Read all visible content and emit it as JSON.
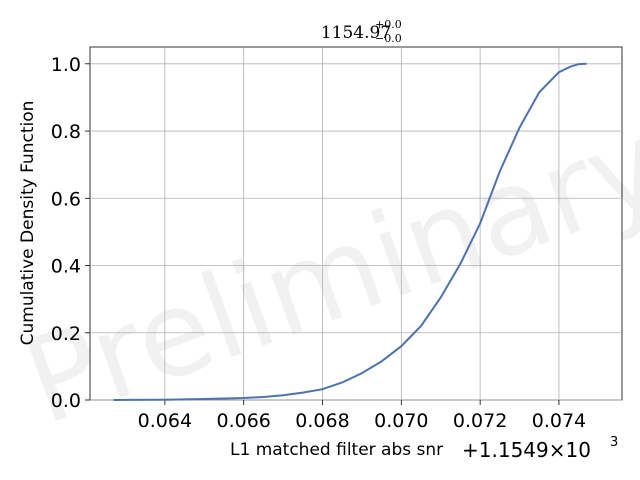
{
  "chart_data": {
    "type": "line",
    "title_main": "1154.97",
    "title_sup": "+0.0",
    "title_sub": "−0.0",
    "xlabel": "L1 matched filter abs snr",
    "ylabel": "Cumulative Density Function",
    "x_offset_text": "+1.1549×10",
    "x_offset_exp": "3",
    "watermark": "Preliminary",
    "xlim": [
      0.0621,
      0.0756
    ],
    "ylim": [
      0.0,
      1.05
    ],
    "x_ticks": [
      0.064,
      0.066,
      0.068,
      0.07,
      0.072,
      0.074
    ],
    "x_tick_labels": [
      "0.064",
      "0.066",
      "0.068",
      "0.070",
      "0.072",
      "0.074"
    ],
    "y_ticks": [
      0.0,
      0.2,
      0.4,
      0.6,
      0.8,
      1.0
    ],
    "y_tick_labels": [
      "0.0",
      "0.2",
      "0.4",
      "0.6",
      "0.8",
      "1.0"
    ],
    "grid": true,
    "line_color": "#4c72b0",
    "series": [
      {
        "x": [
          0.0627,
          0.064,
          0.065,
          0.066,
          0.0665,
          0.067,
          0.0675,
          0.068,
          0.0685,
          0.069,
          0.0695,
          0.07,
          0.0705,
          0.071,
          0.0715,
          0.072,
          0.0725,
          0.073,
          0.0735,
          0.074,
          0.0743,
          0.0745,
          0.0747
        ],
        "y": [
          0.0,
          0.001,
          0.003,
          0.006,
          0.009,
          0.014,
          0.022,
          0.032,
          0.052,
          0.08,
          0.115,
          0.16,
          0.22,
          0.305,
          0.405,
          0.525,
          0.68,
          0.81,
          0.915,
          0.975,
          0.992,
          0.999,
          1.0
        ]
      }
    ]
  }
}
